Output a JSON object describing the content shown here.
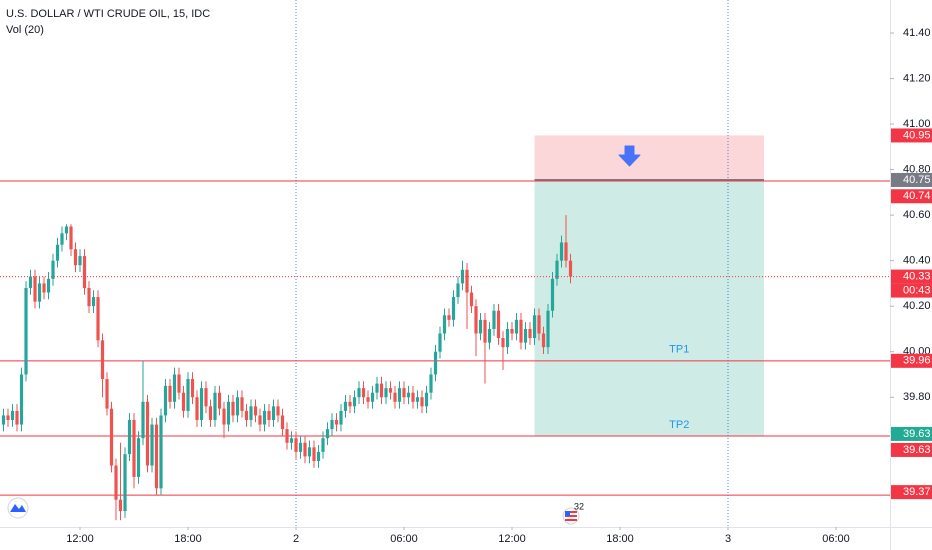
{
  "chart_data": {
    "type": "candlestick",
    "title": "U.S. DOLLAR / WTI CRUDE OIL, 15, IDC",
    "indicator": "Vol (20)",
    "up_color": "#26a69a",
    "down_color": "#ef5350",
    "xlim": [
      -0.78,
      197
    ],
    "ylim": [
      39.23,
      41.545
    ],
    "yticks": [
      {
        "value": 41.4,
        "label": "41.40"
      },
      {
        "value": 41.2,
        "label": "41.20"
      },
      {
        "value": 41.0,
        "label": "41.00"
      },
      {
        "value": 40.8,
        "label": "40.80"
      },
      {
        "value": 40.6,
        "label": "40.60"
      },
      {
        "value": 40.4,
        "label": "40.40"
      },
      {
        "value": 40.2,
        "label": "40.20"
      },
      {
        "value": 40.0,
        "label": "40.00"
      },
      {
        "value": 39.8,
        "label": "39.80"
      }
    ],
    "xticks": [
      {
        "value": 17,
        "label": "12:00"
      },
      {
        "value": 41,
        "label": "18:00"
      },
      {
        "value": 65,
        "label": "2"
      },
      {
        "value": 89,
        "label": "06:00"
      },
      {
        "value": 113,
        "label": "12:00"
      },
      {
        "value": 137,
        "label": "18:00"
      },
      {
        "value": 161,
        "label": "3"
      },
      {
        "value": 185,
        "label": "06:00"
      }
    ],
    "candles": [
      [
        39.68,
        39.75,
        39.65,
        39.72
      ],
      [
        39.72,
        39.75,
        39.67,
        39.7
      ],
      [
        39.7,
        39.77,
        39.67,
        39.74
      ],
      [
        39.74,
        39.77,
        39.65,
        39.68
      ],
      [
        39.68,
        39.93,
        39.65,
        39.9
      ],
      [
        39.9,
        40.31,
        39.87,
        40.28
      ],
      [
        40.28,
        40.36,
        40.25,
        40.33
      ],
      [
        40.33,
        40.36,
        40.19,
        40.22
      ],
      [
        40.22,
        40.33,
        40.19,
        40.3
      ],
      [
        40.3,
        40.33,
        40.23,
        40.26
      ],
      [
        40.26,
        40.35,
        40.23,
        40.32
      ],
      [
        40.32,
        40.43,
        40.29,
        40.4
      ],
      [
        40.4,
        40.5,
        40.37,
        40.47
      ],
      [
        40.47,
        40.55,
        40.44,
        40.52
      ],
      [
        40.52,
        40.56,
        40.49,
        40.55
      ],
      [
        40.55,
        40.56,
        40.42,
        40.45
      ],
      [
        40.45,
        40.48,
        40.35,
        40.38
      ],
      [
        40.38,
        40.45,
        40.35,
        40.42
      ],
      [
        40.42,
        40.45,
        40.25,
        40.28
      ],
      [
        40.28,
        40.31,
        40.17,
        40.2
      ],
      [
        40.2,
        40.27,
        40.17,
        40.24
      ],
      [
        40.24,
        40.27,
        40.02,
        40.05
      ],
      [
        40.05,
        40.08,
        39.8,
        39.88
      ],
      [
        39.88,
        39.91,
        39.72,
        39.75
      ],
      [
        39.75,
        39.78,
        39.47,
        39.5
      ],
      [
        39.5,
        39.53,
        39.26,
        39.35
      ],
      [
        39.35,
        39.6,
        39.26,
        39.3
      ],
      [
        39.3,
        39.58,
        39.27,
        39.55
      ],
      [
        39.55,
        39.73,
        39.52,
        39.7
      ],
      [
        39.7,
        39.73,
        39.4,
        39.45
      ],
      [
        39.45,
        39.65,
        39.42,
        39.62
      ],
      [
        39.62,
        39.96,
        39.59,
        39.78
      ],
      [
        39.78,
        39.81,
        39.47,
        39.5
      ],
      [
        39.5,
        39.71,
        39.47,
        39.68
      ],
      [
        39.68,
        39.71,
        39.37,
        39.4
      ],
      [
        39.4,
        39.75,
        39.37,
        39.72
      ],
      [
        39.72,
        39.88,
        39.69,
        39.85
      ],
      [
        39.85,
        39.88,
        39.75,
        39.78
      ],
      [
        39.78,
        39.93,
        39.75,
        39.9
      ],
      [
        39.9,
        39.93,
        39.79,
        39.82
      ],
      [
        39.82,
        39.85,
        39.71,
        39.74
      ],
      [
        39.74,
        39.91,
        39.71,
        39.88
      ],
      [
        39.88,
        39.91,
        39.77,
        39.8
      ],
      [
        39.8,
        39.83,
        39.67,
        39.7
      ],
      [
        39.7,
        39.87,
        39.67,
        39.84
      ],
      [
        39.84,
        39.87,
        39.73,
        39.76
      ],
      [
        39.76,
        39.79,
        39.67,
        39.7
      ],
      [
        39.7,
        39.85,
        39.67,
        39.82
      ],
      [
        39.82,
        39.85,
        39.72,
        39.75
      ],
      [
        39.75,
        39.78,
        39.62,
        39.68
      ],
      [
        39.68,
        39.81,
        39.65,
        39.78
      ],
      [
        39.78,
        39.81,
        39.69,
        39.72
      ],
      [
        39.72,
        39.83,
        39.69,
        39.8
      ],
      [
        39.8,
        39.83,
        39.71,
        39.74
      ],
      [
        39.74,
        39.77,
        39.67,
        39.7
      ],
      [
        39.7,
        39.79,
        39.67,
        39.76
      ],
      [
        39.76,
        39.79,
        39.69,
        39.72
      ],
      [
        39.72,
        39.75,
        39.65,
        39.68
      ],
      [
        39.68,
        39.77,
        39.65,
        39.74
      ],
      [
        39.74,
        39.77,
        39.67,
        39.7
      ],
      [
        39.7,
        39.79,
        39.67,
        39.76
      ],
      [
        39.76,
        39.79,
        39.69,
        39.72
      ],
      [
        39.72,
        39.75,
        39.63,
        39.66
      ],
      [
        39.66,
        39.69,
        39.57,
        39.6
      ],
      [
        39.6,
        39.65,
        39.57,
        39.62
      ],
      [
        39.62,
        39.65,
        39.53,
        39.56
      ],
      [
        39.56,
        39.63,
        39.53,
        39.6
      ],
      [
        39.6,
        39.63,
        39.51,
        39.54
      ],
      [
        39.54,
        39.61,
        39.51,
        39.58
      ],
      [
        39.58,
        39.61,
        39.49,
        39.52
      ],
      [
        39.52,
        39.59,
        39.49,
        39.56
      ],
      [
        39.56,
        39.65,
        39.53,
        39.62
      ],
      [
        39.62,
        39.69,
        39.59,
        39.66
      ],
      [
        39.66,
        39.73,
        39.63,
        39.7
      ],
      [
        39.7,
        39.73,
        39.65,
        39.68
      ],
      [
        39.68,
        39.77,
        39.65,
        39.74
      ],
      [
        39.74,
        39.81,
        39.71,
        39.78
      ],
      [
        39.78,
        39.81,
        39.73,
        39.76
      ],
      [
        39.76,
        39.83,
        39.73,
        39.8
      ],
      [
        39.8,
        39.87,
        39.77,
        39.84
      ],
      [
        39.84,
        39.87,
        39.77,
        39.8
      ],
      [
        39.8,
        39.83,
        39.75,
        39.78
      ],
      [
        39.78,
        39.85,
        39.75,
        39.82
      ],
      [
        39.82,
        39.89,
        39.79,
        39.86
      ],
      [
        39.86,
        39.89,
        39.77,
        39.8
      ],
      [
        39.8,
        39.87,
        39.77,
        39.84
      ],
      [
        39.84,
        39.87,
        39.79,
        39.82
      ],
      [
        39.82,
        39.85,
        39.75,
        39.78
      ],
      [
        39.78,
        39.87,
        39.75,
        39.84
      ],
      [
        39.84,
        39.87,
        39.77,
        39.8
      ],
      [
        39.8,
        39.85,
        39.77,
        39.82
      ],
      [
        39.82,
        39.85,
        39.75,
        39.78
      ],
      [
        39.78,
        39.83,
        39.75,
        39.8
      ],
      [
        39.8,
        39.83,
        39.73,
        39.76
      ],
      [
        39.76,
        39.85,
        39.73,
        39.82
      ],
      [
        39.82,
        39.93,
        39.79,
        39.9
      ],
      [
        39.9,
        40.03,
        39.87,
        40.0
      ],
      [
        40.0,
        40.11,
        39.97,
        40.08
      ],
      [
        40.08,
        40.19,
        40.05,
        40.16
      ],
      [
        40.16,
        40.19,
        40.11,
        40.14
      ],
      [
        40.14,
        40.27,
        40.11,
        40.24
      ],
      [
        40.24,
        40.33,
        40.21,
        40.3
      ],
      [
        40.3,
        40.4,
        40.27,
        40.36
      ],
      [
        40.36,
        40.39,
        40.1,
        40.26
      ],
      [
        40.26,
        40.29,
        40.17,
        40.2
      ],
      [
        40.2,
        40.23,
        39.98,
        40.08
      ],
      [
        40.08,
        40.17,
        40.05,
        40.14
      ],
      [
        40.14,
        40.17,
        39.86,
        40.04
      ],
      [
        40.04,
        40.13,
        40.01,
        40.1
      ],
      [
        40.1,
        40.21,
        40.07,
        40.18
      ],
      [
        40.18,
        40.21,
        40.03,
        40.06
      ],
      [
        40.06,
        40.09,
        39.92,
        40.02
      ],
      [
        40.02,
        40.13,
        39.99,
        40.1
      ],
      [
        40.1,
        40.13,
        40.05,
        40.08
      ],
      [
        40.08,
        40.17,
        40.05,
        40.14
      ],
      [
        40.14,
        40.17,
        40.01,
        40.04
      ],
      [
        40.04,
        40.13,
        40.01,
        40.1
      ],
      [
        40.1,
        40.13,
        40.03,
        40.06
      ],
      [
        40.06,
        40.19,
        40.03,
        40.16
      ],
      [
        40.16,
        40.19,
        40.05,
        40.08
      ],
      [
        40.08,
        40.11,
        39.99,
        40.02
      ],
      [
        40.02,
        40.21,
        39.99,
        40.18
      ],
      [
        40.18,
        40.35,
        40.15,
        40.32
      ],
      [
        40.32,
        40.43,
        40.29,
        40.4
      ],
      [
        40.4,
        40.51,
        40.37,
        40.48
      ],
      [
        40.48,
        40.6,
        40.37,
        40.4
      ],
      [
        40.4,
        40.43,
        40.3,
        40.33
      ]
    ],
    "levels": [
      40.75,
      39.96,
      39.63,
      39.37
    ],
    "position": {
      "start": 118,
      "end": 169,
      "entry": 40.75,
      "stop": 40.95,
      "target": 39.63,
      "target_labels": [
        {
          "value": 39.96,
          "label": "TP1"
        },
        {
          "value": 39.63,
          "label": "TP2"
        }
      ]
    },
    "price_labels": [
      {
        "value": 40.95,
        "color": "#f23645"
      },
      {
        "value": 40.75,
        "color": "#787b86"
      },
      {
        "value": 40.74,
        "color": "#f23645"
      },
      {
        "value": 40.33,
        "color": "#f23645"
      },
      {
        "value": 39.96,
        "color": "#f23645"
      },
      {
        "value": 39.63,
        "color": "#22ab94"
      },
      {
        "value": 39.63,
        "color": "#f23645"
      },
      {
        "value": 39.37,
        "color": "#f23645"
      }
    ],
    "countdown": "00:43",
    "events_count": "32"
  }
}
